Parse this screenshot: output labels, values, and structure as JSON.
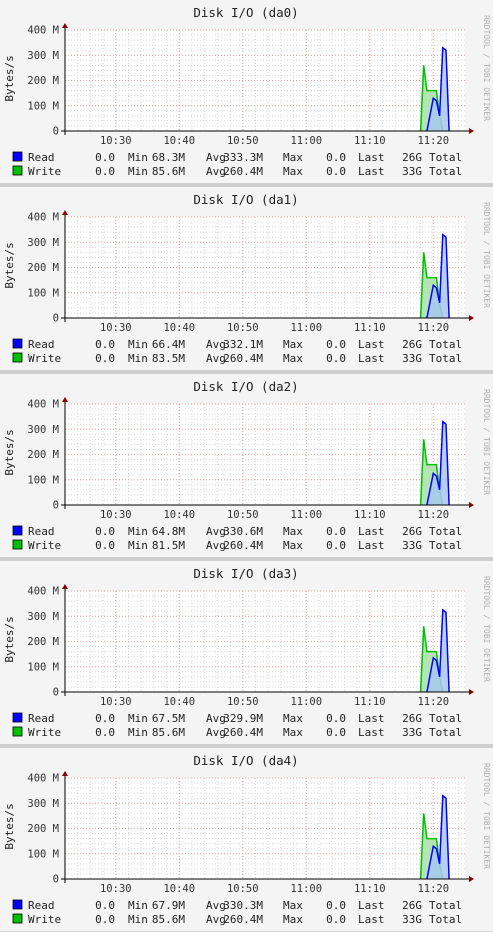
{
  "chart_data": [
    {
      "type": "area",
      "title": "Disk I/O (da0)",
      "ylabel": "Bytes/s",
      "watermark": "RRDTOOL / TOBI OETIKER",
      "x_ticks": [
        "10:30",
        "10:40",
        "10:50",
        "11:00",
        "11:10",
        "11:20"
      ],
      "y_ticks": [
        "0",
        "100 M",
        "200 M",
        "300 M",
        "400 M"
      ],
      "ylim": [
        0,
        400
      ],
      "xlim": [
        "10:22",
        "11:25"
      ],
      "grid": true,
      "series": [
        {
          "name": "Read",
          "color": "#0000ff",
          "x": [
            "11:19",
            "11:20",
            "11:20.5",
            "11:21",
            "11:21.5",
            "11:22",
            "11:22.5"
          ],
          "values": [
            0,
            130,
            120,
            60,
            330,
            320,
            0
          ],
          "stats": [
            "Read",
            "0.0",
            "Min",
            "68.3M",
            "Avg",
            "333.3M",
            "Max",
            "0.0",
            "Last",
            "26G",
            "Total"
          ]
        },
        {
          "name": "Write",
          "color": "#00c000",
          "x": [
            "11:18",
            "11:18.5",
            "11:19",
            "11:20",
            "11:20.5",
            "11:21",
            "11:21.5"
          ],
          "values": [
            0,
            260,
            160,
            160,
            160,
            60,
            0
          ],
          "stats": [
            "Write",
            "0.0",
            "Min",
            "85.6M",
            "Avg",
            "260.4M",
            "Max",
            "0.0",
            "Last",
            "33G",
            "Total"
          ]
        }
      ]
    },
    {
      "type": "area",
      "title": "Disk I/O (da1)",
      "ylabel": "Bytes/s",
      "watermark": "RRDTOOL / TOBI OETIKER",
      "x_ticks": [
        "10:30",
        "10:40",
        "10:50",
        "11:00",
        "11:10",
        "11:20"
      ],
      "y_ticks": [
        "0",
        "100 M",
        "200 M",
        "300 M",
        "400 M"
      ],
      "ylim": [
        0,
        400
      ],
      "xlim": [
        "10:22",
        "11:25"
      ],
      "grid": true,
      "series": [
        {
          "name": "Read",
          "color": "#0000ff",
          "x": [
            "11:19",
            "11:20",
            "11:20.5",
            "11:21",
            "11:21.5",
            "11:22",
            "11:22.5"
          ],
          "values": [
            0,
            130,
            120,
            60,
            330,
            320,
            0
          ],
          "stats": [
            "Read",
            "0.0",
            "Min",
            "66.4M",
            "Avg",
            "332.1M",
            "Max",
            "0.0",
            "Last",
            "26G",
            "Total"
          ]
        },
        {
          "name": "Write",
          "color": "#00c000",
          "x": [
            "11:18",
            "11:18.5",
            "11:19",
            "11:20",
            "11:20.5",
            "11:21",
            "11:21.5"
          ],
          "values": [
            0,
            260,
            160,
            160,
            160,
            60,
            0
          ],
          "stats": [
            "Write",
            "0.0",
            "Min",
            "83.5M",
            "Avg",
            "260.4M",
            "Max",
            "0.0",
            "Last",
            "33G",
            "Total"
          ]
        }
      ]
    },
    {
      "type": "area",
      "title": "Disk I/O (da2)",
      "ylabel": "Bytes/s",
      "watermark": "RRDTOOL / TOBI OETIKER",
      "x_ticks": [
        "10:30",
        "10:40",
        "10:50",
        "11:00",
        "11:10",
        "11:20"
      ],
      "y_ticks": [
        "0",
        "100 M",
        "200 M",
        "300 M",
        "400 M"
      ],
      "ylim": [
        0,
        400
      ],
      "xlim": [
        "10:22",
        "11:25"
      ],
      "grid": true,
      "series": [
        {
          "name": "Read",
          "color": "#0000ff",
          "x": [
            "11:19",
            "11:20",
            "11:20.5",
            "11:21",
            "11:21.5",
            "11:22",
            "11:22.5"
          ],
          "values": [
            0,
            125,
            115,
            60,
            330,
            320,
            0
          ],
          "stats": [
            "Read",
            "0.0",
            "Min",
            "64.8M",
            "Avg",
            "330.6M",
            "Max",
            "0.0",
            "Last",
            "26G",
            "Total"
          ]
        },
        {
          "name": "Write",
          "color": "#00c000",
          "x": [
            "11:18",
            "11:18.5",
            "11:19",
            "11:20",
            "11:20.5",
            "11:21",
            "11:21.5"
          ],
          "values": [
            0,
            260,
            160,
            160,
            160,
            60,
            0
          ],
          "stats": [
            "Write",
            "0.0",
            "Min",
            "81.5M",
            "Avg",
            "260.4M",
            "Max",
            "0.0",
            "Last",
            "33G",
            "Total"
          ]
        }
      ]
    },
    {
      "type": "area",
      "title": "Disk I/O (da3)",
      "ylabel": "Bytes/s",
      "watermark": "RRDTOOL / TOBI OETIKER",
      "x_ticks": [
        "10:30",
        "10:40",
        "10:50",
        "11:00",
        "11:10",
        "11:20"
      ],
      "y_ticks": [
        "0",
        "100 M",
        "200 M",
        "300 M",
        "400 M"
      ],
      "ylim": [
        0,
        400
      ],
      "xlim": [
        "10:22",
        "11:25"
      ],
      "grid": true,
      "series": [
        {
          "name": "Read",
          "color": "#0000ff",
          "x": [
            "11:19",
            "11:20",
            "11:20.5",
            "11:21",
            "11:21.5",
            "11:22",
            "11:22.5"
          ],
          "values": [
            0,
            135,
            125,
            60,
            325,
            315,
            0
          ],
          "stats": [
            "Read",
            "0.0",
            "Min",
            "67.5M",
            "Avg",
            "329.9M",
            "Max",
            "0.0",
            "Last",
            "26G",
            "Total"
          ]
        },
        {
          "name": "Write",
          "color": "#00c000",
          "x": [
            "11:18",
            "11:18.5",
            "11:19",
            "11:20",
            "11:20.5",
            "11:21",
            "11:21.5"
          ],
          "values": [
            0,
            260,
            160,
            160,
            160,
            60,
            0
          ],
          "stats": [
            "Write",
            "0.0",
            "Min",
            "85.6M",
            "Avg",
            "260.4M",
            "Max",
            "0.0",
            "Last",
            "33G",
            "Total"
          ]
        }
      ]
    },
    {
      "type": "area",
      "title": "Disk I/O (da4)",
      "ylabel": "Bytes/s",
      "watermark": "RRDTOOL / TOBI OETIKER",
      "x_ticks": [
        "10:30",
        "10:40",
        "10:50",
        "11:00",
        "11:10",
        "11:20"
      ],
      "y_ticks": [
        "0",
        "100 M",
        "200 M",
        "300 M",
        "400 M"
      ],
      "ylim": [
        0,
        400
      ],
      "xlim": [
        "10:22",
        "11:25"
      ],
      "grid": true,
      "series": [
        {
          "name": "Read",
          "color": "#0000ff",
          "x": [
            "11:19",
            "11:20",
            "11:20.5",
            "11:21",
            "11:21.5",
            "11:22",
            "11:22.5"
          ],
          "values": [
            0,
            130,
            120,
            60,
            330,
            320,
            0
          ],
          "stats": [
            "Read",
            "0.0",
            "Min",
            "67.9M",
            "Avg",
            "330.3M",
            "Max",
            "0.0",
            "Last",
            "26G",
            "Total"
          ]
        },
        {
          "name": "Write",
          "color": "#00c000",
          "x": [
            "11:18",
            "11:18.5",
            "11:19",
            "11:20",
            "11:20.5",
            "11:21",
            "11:21.5"
          ],
          "values": [
            0,
            260,
            160,
            160,
            160,
            60,
            0
          ],
          "stats": [
            "Write",
            "0.0",
            "Min",
            "85.6M",
            "Avg",
            "260.4M",
            "Max",
            "0.0",
            "Last",
            "33G",
            "Total"
          ]
        }
      ]
    }
  ]
}
